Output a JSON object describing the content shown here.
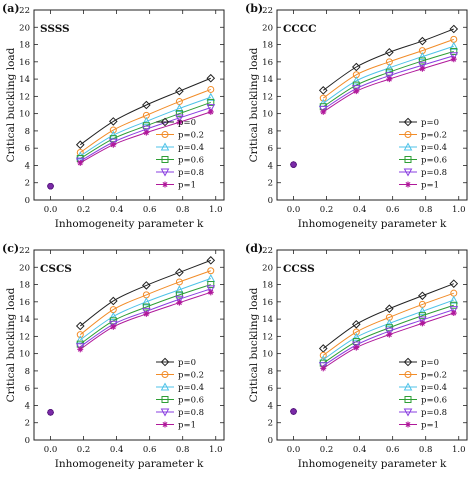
{
  "legend_entries": [
    "p=0",
    "p=0.2",
    "p=0.4",
    "p=0.6",
    "p=0.8",
    "p=1"
  ],
  "series_colors": [
    "#222222",
    "#f28c28",
    "#4fc3e8",
    "#2e9e35",
    "#8a3fe0",
    "#b0189a"
  ],
  "series_markers": [
    "diamond",
    "circle",
    "triangle",
    "square",
    "triangle-down",
    "star"
  ],
  "chart_data": [
    {
      "type": "line",
      "panel_tag": "(a)",
      "panel_name": "SSSS",
      "xlabel": "Inhomogeneity parameter k",
      "ylabel": "Critical buckling load",
      "xlim": [
        -0.1,
        1.05
      ],
      "ylim": [
        0,
        22
      ],
      "xticks": [
        "0.0",
        "0.2",
        "0.4",
        "0.6",
        "0.8",
        "1.0"
      ],
      "yticks": [
        "0",
        "2",
        "4",
        "6",
        "8",
        "10",
        "12",
        "14",
        "16",
        "18",
        "20",
        "22"
      ],
      "grid": false,
      "legend_position": "lower-right",
      "x": [
        0,
        0.18,
        0.38,
        0.58,
        0.78,
        0.97
      ],
      "series": [
        {
          "name": "p=0",
          "values": [
            1.6,
            6.4,
            9.1,
            11.0,
            12.6,
            14.1
          ]
        },
        {
          "name": "p=0.2",
          "values": [
            1.6,
            5.5,
            8.1,
            9.8,
            11.4,
            12.8
          ]
        },
        {
          "name": "p=0.4",
          "values": [
            1.6,
            5.1,
            7.5,
            9.1,
            10.6,
            11.9
          ]
        },
        {
          "name": "p=0.6",
          "values": [
            1.6,
            4.8,
            7.1,
            8.6,
            10.0,
            11.3
          ]
        },
        {
          "name": "p=0.8",
          "values": [
            1.6,
            4.5,
            6.7,
            8.2,
            9.5,
            10.7
          ]
        },
        {
          "name": "p=1",
          "values": [
            1.6,
            4.3,
            6.4,
            7.8,
            9.0,
            10.2
          ]
        }
      ]
    },
    {
      "type": "line",
      "panel_tag": "(b)",
      "panel_name": "CCCC",
      "xlabel": "Inhomogeneity parameter k",
      "ylabel": "Critical buckling load",
      "xlim": [
        -0.1,
        1.05
      ],
      "ylim": [
        0,
        22
      ],
      "xticks": [
        "0.0",
        "0.2",
        "0.4",
        "0.6",
        "0.8",
        "1.0"
      ],
      "yticks": [
        "0",
        "2",
        "4",
        "6",
        "8",
        "10",
        "12",
        "14",
        "16",
        "18",
        "20",
        "22"
      ],
      "grid": false,
      "legend_position": "lower-right",
      "x": [
        0,
        0.18,
        0.38,
        0.58,
        0.78,
        0.97
      ],
      "series": [
        {
          "name": "p=0",
          "values": [
            4.1,
            12.7,
            15.4,
            17.1,
            18.4,
            19.8
          ]
        },
        {
          "name": "p=0.2",
          "values": [
            4.1,
            11.8,
            14.5,
            16.0,
            17.3,
            18.6
          ]
        },
        {
          "name": "p=0.4",
          "values": [
            4.1,
            11.2,
            13.8,
            15.3,
            16.6,
            17.8
          ]
        },
        {
          "name": "p=0.6",
          "values": [
            4.1,
            10.8,
            13.3,
            14.8,
            16.1,
            17.2
          ]
        },
        {
          "name": "p=0.8",
          "values": [
            4.1,
            10.5,
            12.9,
            14.4,
            15.6,
            16.7
          ]
        },
        {
          "name": "p=1",
          "values": [
            4.1,
            10.2,
            12.6,
            14.0,
            15.2,
            16.3
          ]
        }
      ]
    },
    {
      "type": "line",
      "panel_tag": "(c)",
      "panel_name": "CSCS",
      "xlabel": "Inhomogeneity parameter k",
      "ylabel": "Critical buckling load",
      "xlim": [
        -0.1,
        1.05
      ],
      "ylim": [
        0,
        22
      ],
      "xticks": [
        "0.0",
        "0.2",
        "0.4",
        "0.6",
        "0.8",
        "1.0"
      ],
      "yticks": [
        "0",
        "2",
        "4",
        "6",
        "8",
        "10",
        "12",
        "14",
        "16",
        "18",
        "20",
        "22"
      ],
      "grid": false,
      "legend_position": "lower-right",
      "x": [
        0,
        0.18,
        0.38,
        0.58,
        0.78,
        0.97
      ],
      "series": [
        {
          "name": "p=0",
          "values": [
            3.2,
            13.2,
            16.1,
            17.9,
            19.4,
            20.8
          ]
        },
        {
          "name": "p=0.2",
          "values": [
            3.2,
            12.2,
            15.1,
            16.8,
            18.3,
            19.6
          ]
        },
        {
          "name": "p=0.4",
          "values": [
            3.2,
            11.6,
            14.3,
            16.0,
            17.4,
            18.7
          ]
        },
        {
          "name": "p=0.6",
          "values": [
            3.2,
            11.1,
            13.8,
            15.4,
            16.8,
            18.0
          ]
        },
        {
          "name": "p=0.8",
          "values": [
            3.2,
            10.8,
            13.4,
            14.9,
            16.3,
            17.5
          ]
        },
        {
          "name": "p=1",
          "values": [
            3.2,
            10.5,
            13.1,
            14.6,
            15.9,
            17.1
          ]
        }
      ]
    },
    {
      "type": "line",
      "panel_tag": "(d)",
      "panel_name": "CCSS",
      "xlabel": "Inhomogeneity parameter k",
      "ylabel": "Critical buckling load",
      "xlim": [
        -0.1,
        1.05
      ],
      "ylim": [
        0,
        22
      ],
      "xticks": [
        "0.0",
        "0.2",
        "0.4",
        "0.6",
        "0.8",
        "1.0"
      ],
      "yticks": [
        "0",
        "2",
        "4",
        "6",
        "8",
        "10",
        "12",
        "14",
        "16",
        "18",
        "20",
        "22"
      ],
      "grid": false,
      "legend_position": "lower-right",
      "x": [
        0,
        0.18,
        0.38,
        0.58,
        0.78,
        0.97
      ],
      "series": [
        {
          "name": "p=0",
          "values": [
            3.3,
            10.6,
            13.4,
            15.2,
            16.7,
            18.1
          ]
        },
        {
          "name": "p=0.2",
          "values": [
            3.3,
            9.8,
            12.5,
            14.2,
            15.7,
            17.0
          ]
        },
        {
          "name": "p=0.4",
          "values": [
            3.3,
            9.3,
            11.9,
            13.5,
            14.9,
            16.2
          ]
        },
        {
          "name": "p=0.6",
          "values": [
            3.3,
            8.9,
            11.4,
            13.0,
            14.4,
            15.6
          ]
        },
        {
          "name": "p=0.8",
          "values": [
            3.3,
            8.6,
            11.0,
            12.6,
            13.9,
            15.1
          ]
        },
        {
          "name": "p=1",
          "values": [
            3.3,
            8.3,
            10.7,
            12.2,
            13.5,
            14.7
          ]
        }
      ]
    }
  ]
}
